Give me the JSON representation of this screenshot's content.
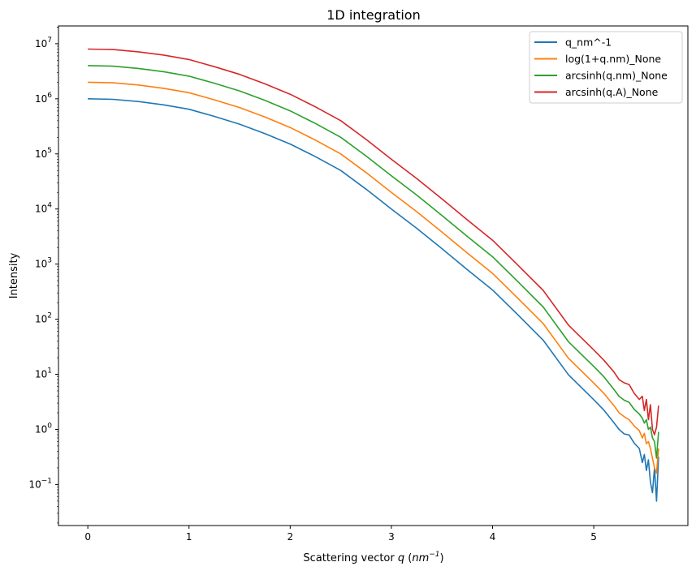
{
  "chart_data": {
    "type": "line",
    "title": "1D integration",
    "xlabel": "Scattering vector q (nm^-1)",
    "xlabel_parts": {
      "text": "Scattering vector ",
      "var": "q",
      "unit_open": " (",
      "unit": "nm",
      "exp": "−1",
      "unit_close": ")"
    },
    "ylabel": "Intensity",
    "xlim": [
      -0.29,
      5.93
    ],
    "ylim": [
      0.018,
      21000000
    ],
    "yscale": "log",
    "grid": false,
    "legend_position": "top-right",
    "x_ticks": [
      "0",
      "1",
      "2",
      "3",
      "4",
      "5"
    ],
    "y_ticks": [
      {
        "value": 0.1,
        "base": "10",
        "exp": "−1"
      },
      {
        "value": 1,
        "base": "10",
        "exp": "0"
      },
      {
        "value": 10,
        "base": "10",
        "exp": "1"
      },
      {
        "value": 100,
        "base": "10",
        "exp": "2"
      },
      {
        "value": 1000,
        "base": "10",
        "exp": "3"
      },
      {
        "value": 10000,
        "base": "10",
        "exp": "4"
      },
      {
        "value": 100000,
        "base": "10",
        "exp": "5"
      },
      {
        "value": 1000000,
        "base": "10",
        "exp": "6"
      },
      {
        "value": 10000000,
        "base": "10",
        "exp": "7"
      }
    ],
    "x": [
      0,
      0.25,
      0.5,
      0.75,
      1,
      1.25,
      1.5,
      1.75,
      2,
      2.25,
      2.5,
      2.75,
      3,
      3.25,
      3.5,
      3.75,
      4,
      4.25,
      4.5,
      4.75,
      5,
      5.1,
      5.2,
      5.25,
      5.3,
      5.35,
      5.4,
      5.45,
      5.48,
      5.5,
      5.52,
      5.54,
      5.56,
      5.58,
      5.6,
      5.62,
      5.64
    ],
    "series": [
      {
        "name": "q_nm^-1",
        "color": "#1f77b4",
        "values": [
          1000000,
          977000,
          891000,
          776000,
          646000,
          479000,
          347000,
          234000,
          151000,
          89100,
          50100,
          22900,
          10000,
          4470,
          1910,
          794,
          339,
          120,
          41.7,
          9.77,
          3.47,
          2.24,
          1.32,
          1.0,
          0.83,
          0.79,
          0.56,
          0.45,
          0.25,
          0.35,
          0.18,
          0.28,
          0.11,
          0.071,
          0.2,
          0.05,
          0.32
        ]
      },
      {
        "name": "log(1+q.nm)_None",
        "color": "#ff7f0e",
        "values": [
          2000000,
          1950000,
          1780000,
          1550000,
          1290000,
          958000,
          694000,
          468000,
          302000,
          178000,
          100000,
          45800,
          20000,
          8940,
          3820,
          1590,
          678,
          240,
          83.4,
          19.5,
          6.94,
          4.5,
          2.7,
          2.0,
          1.7,
          1.5,
          1.15,
          0.95,
          0.7,
          0.85,
          0.55,
          0.6,
          0.45,
          0.3,
          0.2,
          0.16,
          0.45
        ]
      },
      {
        "name": "arcsinh(q.nm)_None",
        "color": "#2ca02c",
        "values": [
          4000000,
          3910000,
          3560000,
          3100000,
          2580000,
          1920000,
          1390000,
          936000,
          604000,
          356000,
          200000,
          91600,
          40000,
          17900,
          7640,
          3180,
          1360,
          480,
          167,
          39,
          13.9,
          9.0,
          5.3,
          4.0,
          3.4,
          3.1,
          2.3,
          1.9,
          1.6,
          1.3,
          1.5,
          1.0,
          1.1,
          0.7,
          0.6,
          0.3,
          0.9
        ]
      },
      {
        "name": "arcsinh(q.A)_None",
        "color": "#d62728",
        "values": [
          8000000,
          7820000,
          7130000,
          6210000,
          5170000,
          3830000,
          2780000,
          1870000,
          1210000,
          713000,
          401000,
          183000,
          80000,
          35800,
          15300,
          6350,
          2710,
          960,
          334,
          78,
          27.8,
          18,
          11,
          8,
          7,
          6.5,
          4.5,
          3.5,
          4.0,
          2.2,
          3.5,
          1.5,
          2.8,
          1.0,
          0.8,
          1.1,
          2.7
        ]
      }
    ]
  }
}
